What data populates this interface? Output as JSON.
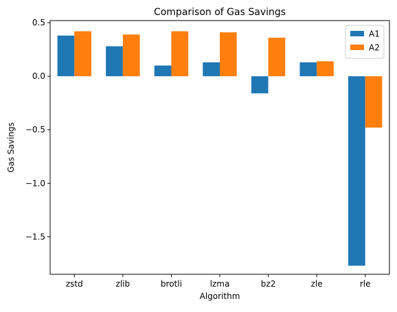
{
  "chart_data": {
    "type": "bar",
    "title": "Comparison of Gas Savings",
    "xlabel": "Algorithm",
    "ylabel": "Gas Savings",
    "categories": [
      "zstd",
      "zlib",
      "brotli",
      "lzma",
      "bz2",
      "zle",
      "rle"
    ],
    "series": [
      {
        "name": "A1",
        "color": "#1f77b4",
        "values": [
          0.38,
          0.28,
          0.1,
          0.13,
          -0.16,
          0.13,
          -1.77
        ]
      },
      {
        "name": "A2",
        "color": "#ff7f0e",
        "values": [
          0.42,
          0.39,
          0.42,
          0.41,
          0.36,
          0.14,
          -0.48
        ]
      }
    ],
    "ylim": [
      -1.85,
      0.52
    ],
    "yticks": [
      0.5,
      0.0,
      -0.5,
      -1.0,
      -1.5
    ],
    "ytick_labels": [
      "0.5",
      "0.0",
      "−0.5",
      "−1.0",
      "−1.5"
    ],
    "grid": false,
    "legend_position": "top-right"
  }
}
